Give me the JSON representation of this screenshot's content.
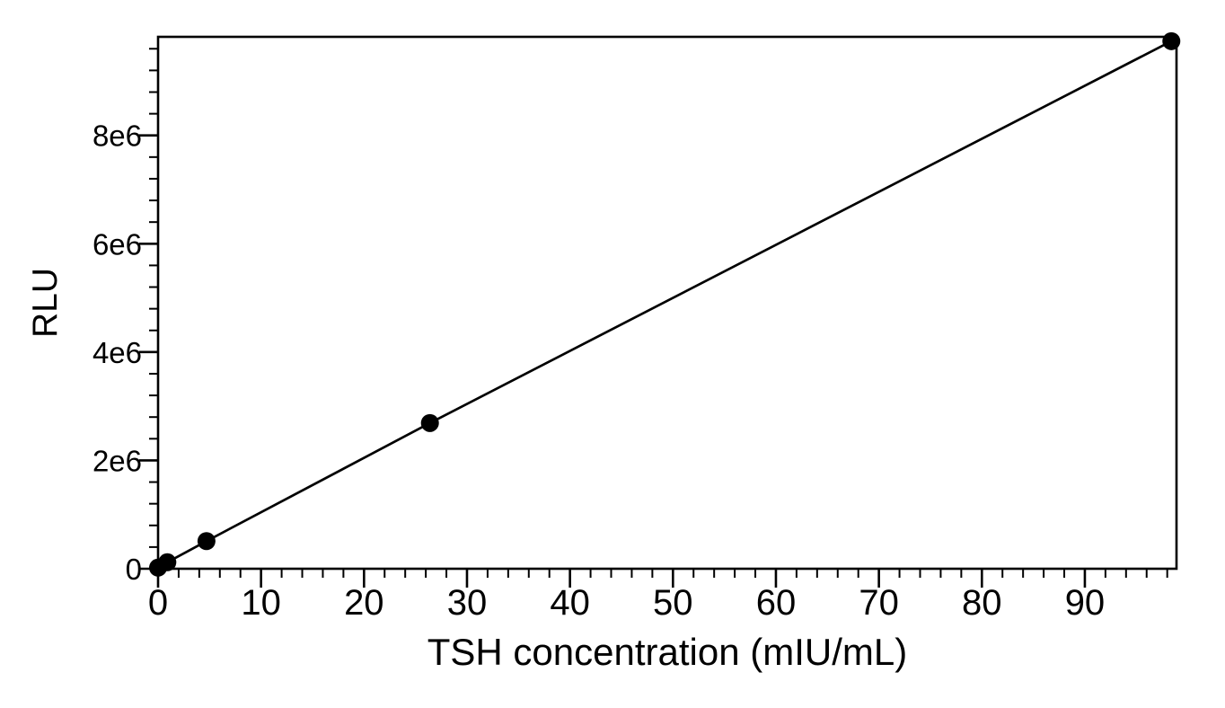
{
  "figure": {
    "background": "#ffffff"
  },
  "chart_data": {
    "type": "scatter",
    "title": "",
    "xlabel": "TSH concentration (mIU/mL)",
    "ylabel": "RLU",
    "xlim": [
      0,
      98.9
    ],
    "ylim": [
      0,
      9820000
    ],
    "x_major_ticks": [
      0,
      10,
      20,
      30,
      40,
      50,
      60,
      70,
      80,
      90
    ],
    "x_tick_labels": [
      "0",
      "10",
      "20",
      "30",
      "40",
      "50",
      "60",
      "70",
      "80",
      "90"
    ],
    "x_minor_tick_step": 2,
    "y_major_ticks": [
      0,
      2000000,
      4000000,
      6000000,
      8000000
    ],
    "y_tick_labels": [
      "0",
      "2e6",
      "4e6",
      "6e6",
      "8e6"
    ],
    "y_minor_tick_step": 400000,
    "grid": false,
    "legend": false,
    "marker": "filled-circle",
    "line_through_points": true,
    "points": [
      {
        "x": 0,
        "y": 20000
      },
      {
        "x": 0.9,
        "y": 120000
      },
      {
        "x": 4.7,
        "y": 510000
      },
      {
        "x": 26.4,
        "y": 2690000
      },
      {
        "x": 98.4,
        "y": 9740000
      }
    ],
    "colors": {
      "axis": "#000000",
      "line": "#000000",
      "marker": "#000000",
      "background": "#ffffff"
    }
  }
}
